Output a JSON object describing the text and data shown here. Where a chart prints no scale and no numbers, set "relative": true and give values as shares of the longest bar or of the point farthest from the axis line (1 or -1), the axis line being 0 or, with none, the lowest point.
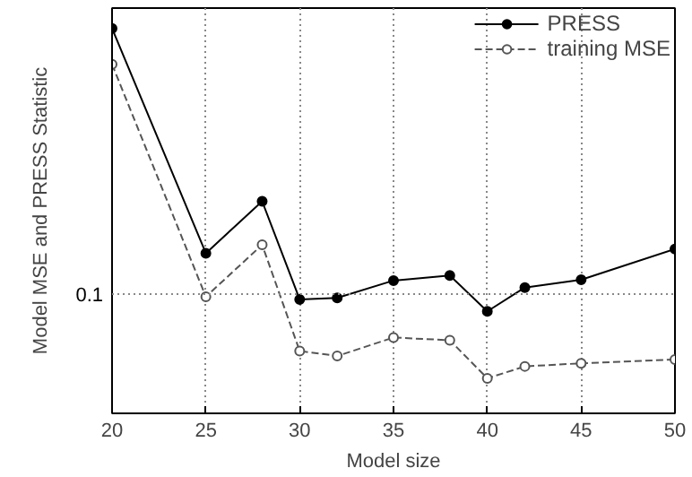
{
  "chart_data": {
    "type": "line",
    "xlabel": "Model size",
    "ylabel": "Model MSE and PRESS Statistic",
    "relative": true,
    "x": [
      20,
      25,
      28,
      30,
      32,
      35,
      38,
      40,
      42,
      45,
      50
    ],
    "series": [
      {
        "name": "PRESS",
        "color": "#000000",
        "marker": "circle",
        "line_style": "solid",
        "values": [
          1.0,
          0.416,
          0.551,
          0.296,
          0.3,
          0.345,
          0.358,
          0.265,
          0.327,
          0.347,
          0.427
        ]
      },
      {
        "name": "training MSE",
        "color": "#555555",
        "marker": "circle_open",
        "line_style": "dashed",
        "values": [
          0.907,
          0.303,
          0.438,
          0.162,
          0.149,
          0.197,
          0.19,
          0.091,
          0.122,
          0.13,
          0.14
        ]
      }
    ],
    "xlim": [
      20,
      50
    ],
    "xticks": [
      20,
      25,
      30,
      35,
      40,
      45,
      50
    ],
    "grid": "x",
    "legend": "top right",
    "ref_lines": [
      {
        "axis": "y",
        "value": 0.31,
        "line_style": "dotted"
      }
    ],
    "annotations": [
      "0.1"
    ]
  }
}
